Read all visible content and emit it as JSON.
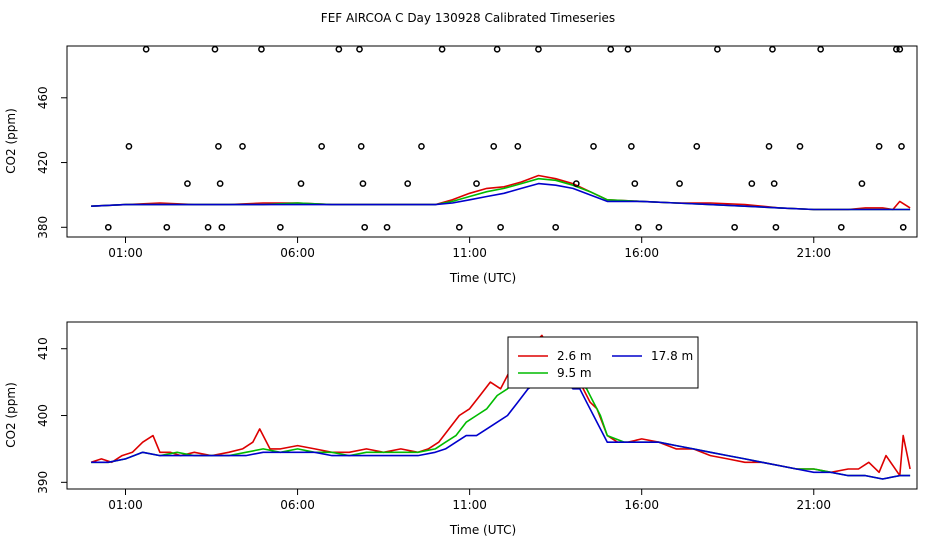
{
  "figure": {
    "title": "FEF AIRCOA C  Day 130928  Calibrated Timeseries",
    "colors": {
      "red": "#dd0000",
      "green": "#00bb00",
      "blue": "#0000cc",
      "black": "#000000"
    }
  },
  "chart_data": [
    {
      "type": "line",
      "panel": "top",
      "xlabel": "Time (UTC)",
      "ylabel": "CO2 (ppm)",
      "xlim": [
        -0.7,
        24.0
      ],
      "ylim": [
        374,
        492
      ],
      "xticks": [
        1,
        6,
        11,
        16,
        21
      ],
      "xtick_labels": [
        "01:00",
        "06:00",
        "11:00",
        "16:00",
        "21:00"
      ],
      "yticks": [
        380,
        420,
        460
      ],
      "ytick_labels": [
        "380",
        "420",
        "460"
      ],
      "calibration_points": {
        "marker": "open-circle",
        "x": [
          0.5,
          1.1,
          1.6,
          2.2,
          2.8,
          3.4,
          3.6,
          3.7,
          3.75,
          3.8,
          4.4,
          4.95,
          5.5,
          6.1,
          6.7,
          7.2,
          7.8,
          7.85,
          7.9,
          7.95,
          8.6,
          9.2,
          9.6,
          10.2,
          10.7,
          11.2,
          11.7,
          11.8,
          11.9,
          12.4,
          13.0,
          13.5,
          14.1,
          14.6,
          15.1,
          15.6,
          15.7,
          15.8,
          15.9,
          16.5,
          17.1,
          17.6,
          18.2,
          18.7,
          19.2,
          19.7,
          19.8,
          19.85,
          19.9,
          20.6,
          21.2,
          21.8,
          22.4,
          22.9,
          23.4,
          23.5,
          23.55,
          23.6
        ],
        "y": [
          380,
          430,
          490,
          380,
          407,
          380,
          490,
          430,
          407,
          380,
          430,
          490,
          380,
          407,
          430,
          490,
          490,
          430,
          407,
          380,
          380,
          407,
          430,
          490,
          380,
          407,
          430,
          490,
          380,
          430,
          490,
          380,
          407,
          430,
          490,
          490,
          430,
          407,
          380,
          380,
          407,
          430,
          490,
          380,
          407,
          430,
          490,
          407,
          380,
          430,
          490,
          380,
          407,
          430,
          490,
          490,
          430,
          380
        ]
      },
      "series": [
        {
          "color": "red",
          "x": [
            0,
            1,
            2,
            3,
            4,
            5,
            6,
            7,
            8,
            9,
            10,
            10.5,
            11,
            11.5,
            12,
            12.5,
            13,
            13.5,
            14,
            14.5,
            15,
            16,
            17,
            18,
            19,
            20,
            21,
            22,
            22.5,
            23,
            23.3,
            23.5,
            23.8
          ],
          "y": [
            393,
            394,
            395,
            394,
            394,
            395,
            395,
            394,
            394,
            394,
            394,
            397,
            401,
            404,
            405,
            408,
            412,
            410,
            407,
            402,
            397,
            396,
            395,
            395,
            394,
            392,
            391,
            391,
            392,
            392,
            391,
            396,
            392
          ]
        },
        {
          "color": "green",
          "x": [
            0,
            1,
            2,
            3,
            4,
            5,
            6,
            7,
            8,
            9,
            10,
            10.5,
            11,
            11.5,
            12,
            12.5,
            13,
            13.5,
            14,
            14.5,
            15,
            16,
            17,
            18,
            19,
            20,
            21,
            22,
            23,
            23.8
          ],
          "y": [
            393,
            394,
            394,
            394,
            394,
            394,
            395,
            394,
            394,
            394,
            394,
            396,
            399,
            402,
            404,
            407,
            410,
            409,
            406,
            402,
            397,
            396,
            395,
            394,
            393,
            392,
            391,
            391,
            391,
            391
          ]
        },
        {
          "color": "blue",
          "x": [
            0,
            1,
            2,
            3,
            4,
            5,
            6,
            7,
            8,
            9,
            10,
            10.5,
            11,
            11.5,
            12,
            12.5,
            13,
            13.5,
            14,
            14.5,
            15,
            16,
            17,
            18,
            19,
            20,
            21,
            22,
            23,
            23.8
          ],
          "y": [
            393,
            394,
            394,
            394,
            394,
            394,
            394,
            394,
            394,
            394,
            394,
            395,
            397,
            399,
            401,
            404,
            407,
            406,
            404,
            400,
            396,
            396,
            395,
            394,
            393,
            392,
            391,
            391,
            391,
            391
          ]
        }
      ]
    },
    {
      "type": "line",
      "panel": "bottom",
      "xlabel": "Time (UTC)",
      "ylabel": "CO2 (ppm)",
      "xlim": [
        -0.7,
        24.0
      ],
      "ylim": [
        389,
        414
      ],
      "xticks": [
        1,
        6,
        11,
        16,
        21
      ],
      "xtick_labels": [
        "01:00",
        "06:00",
        "11:00",
        "16:00",
        "21:00"
      ],
      "yticks": [
        390,
        400,
        410
      ],
      "ytick_labels": [
        "390",
        "400",
        "410"
      ],
      "legend": {
        "placement": "top-center",
        "entries": [
          {
            "label": "2.6 m",
            "color": "red"
          },
          {
            "label": "9.5 m",
            "color": "green"
          },
          {
            "label": "17.8 m",
            "color": "blue"
          }
        ]
      },
      "series": [
        {
          "name": "2.6 m",
          "color": "red",
          "x": [
            0,
            0.3,
            0.6,
            0.9,
            1.2,
            1.5,
            1.8,
            2.0,
            2.3,
            2.6,
            3.0,
            3.5,
            4.0,
            4.4,
            4.7,
            4.9,
            5.2,
            5.5,
            6.0,
            6.5,
            7.0,
            7.5,
            8.0,
            8.5,
            9.0,
            9.5,
            9.8,
            10.1,
            10.4,
            10.7,
            11.0,
            11.3,
            11.6,
            11.9,
            12.1,
            12.3,
            12.5,
            12.7,
            12.9,
            13.1,
            13.3,
            13.5,
            13.7,
            13.9,
            14.1,
            14.3,
            14.5,
            14.7,
            15.0,
            15.3,
            15.6,
            16.0,
            16.5,
            17.0,
            17.5,
            18.0,
            18.5,
            19.0,
            19.5,
            20.0,
            20.5,
            21.0,
            21.5,
            22.0,
            22.3,
            22.6,
            22.9,
            23.1,
            23.3,
            23.5,
            23.6,
            23.8
          ],
          "y": [
            393,
            393.5,
            393,
            394,
            394.5,
            396,
            397,
            394.5,
            394.5,
            394,
            394.5,
            394,
            394.5,
            395,
            396,
            398,
            395,
            395,
            395.5,
            395,
            394.5,
            394.5,
            395,
            394.5,
            395,
            394.5,
            395,
            396,
            398,
            400,
            401,
            403,
            405,
            404,
            406,
            408,
            411,
            409,
            411,
            412,
            410,
            408,
            407,
            405,
            406,
            404,
            402,
            401,
            397,
            396,
            396,
            396.5,
            396,
            395,
            395,
            394,
            393.5,
            393,
            393,
            392.5,
            392,
            392,
            391.5,
            392,
            392,
            393,
            391.5,
            394,
            392.5,
            391,
            397,
            392
          ]
        },
        {
          "name": "9.5 m",
          "color": "green",
          "x": [
            0,
            0.5,
            1,
            1.5,
            2,
            2.5,
            3,
            3.5,
            4,
            4.5,
            5,
            5.5,
            6,
            6.5,
            7,
            7.5,
            8,
            8.5,
            9,
            9.5,
            10,
            10.3,
            10.6,
            10.9,
            11.2,
            11.5,
            11.8,
            12.1,
            12.4,
            12.7,
            13,
            13.2,
            13.4,
            13.6,
            13.8,
            14.0,
            14.2,
            14.4,
            14.6,
            14.8,
            15,
            15.5,
            16,
            16.5,
            17,
            17.5,
            18,
            18.5,
            19,
            19.5,
            20,
            20.5,
            21,
            21.5,
            22,
            22.5,
            23,
            23.5,
            23.8
          ],
          "y": [
            393,
            393,
            393.5,
            394.5,
            394,
            394.5,
            394,
            394,
            394,
            394.5,
            395,
            394.5,
            395,
            394.5,
            394.5,
            394,
            394.5,
            394.5,
            394.5,
            394.5,
            395,
            396,
            397,
            399,
            400,
            401,
            403,
            404,
            406,
            408,
            410,
            411,
            409,
            408,
            407,
            406,
            405,
            404,
            402,
            400,
            397,
            396,
            396,
            396,
            395.5,
            395,
            394.5,
            394,
            393.5,
            393,
            392.5,
            392,
            392,
            391.5,
            391,
            391,
            390.5,
            391,
            391
          ]
        },
        {
          "name": "17.8 m",
          "color": "blue",
          "x": [
            0,
            0.5,
            1,
            1.5,
            2,
            2.5,
            3,
            3.5,
            4,
            4.5,
            5,
            5.5,
            6,
            6.5,
            7,
            7.5,
            8,
            8.5,
            9,
            9.5,
            10,
            10.3,
            10.6,
            10.9,
            11.2,
            11.5,
            11.8,
            12.1,
            12.4,
            12.7,
            13,
            13.2,
            13.4,
            13.6,
            13.8,
            14.0,
            14.2,
            14.4,
            14.6,
            14.8,
            15,
            15.5,
            16,
            16.5,
            17,
            17.5,
            18,
            18.5,
            19,
            19.5,
            20,
            20.5,
            21,
            21.5,
            22,
            22.5,
            23,
            23.5,
            23.8
          ],
          "y": [
            393,
            393,
            393.5,
            394.5,
            394,
            394,
            394,
            394,
            394,
            394,
            394.5,
            394.5,
            394.5,
            394.5,
            394,
            394,
            394,
            394,
            394,
            394,
            394.5,
            395,
            396,
            397,
            397,
            398,
            399,
            400,
            402,
            404,
            405,
            408,
            406,
            406,
            405,
            404,
            404,
            402,
            400,
            398,
            396,
            396,
            396,
            396,
            395.5,
            395,
            394.5,
            394,
            393.5,
            393,
            392.5,
            392,
            391.5,
            391.5,
            391,
            391,
            390.5,
            391,
            391
          ]
        }
      ]
    }
  ]
}
